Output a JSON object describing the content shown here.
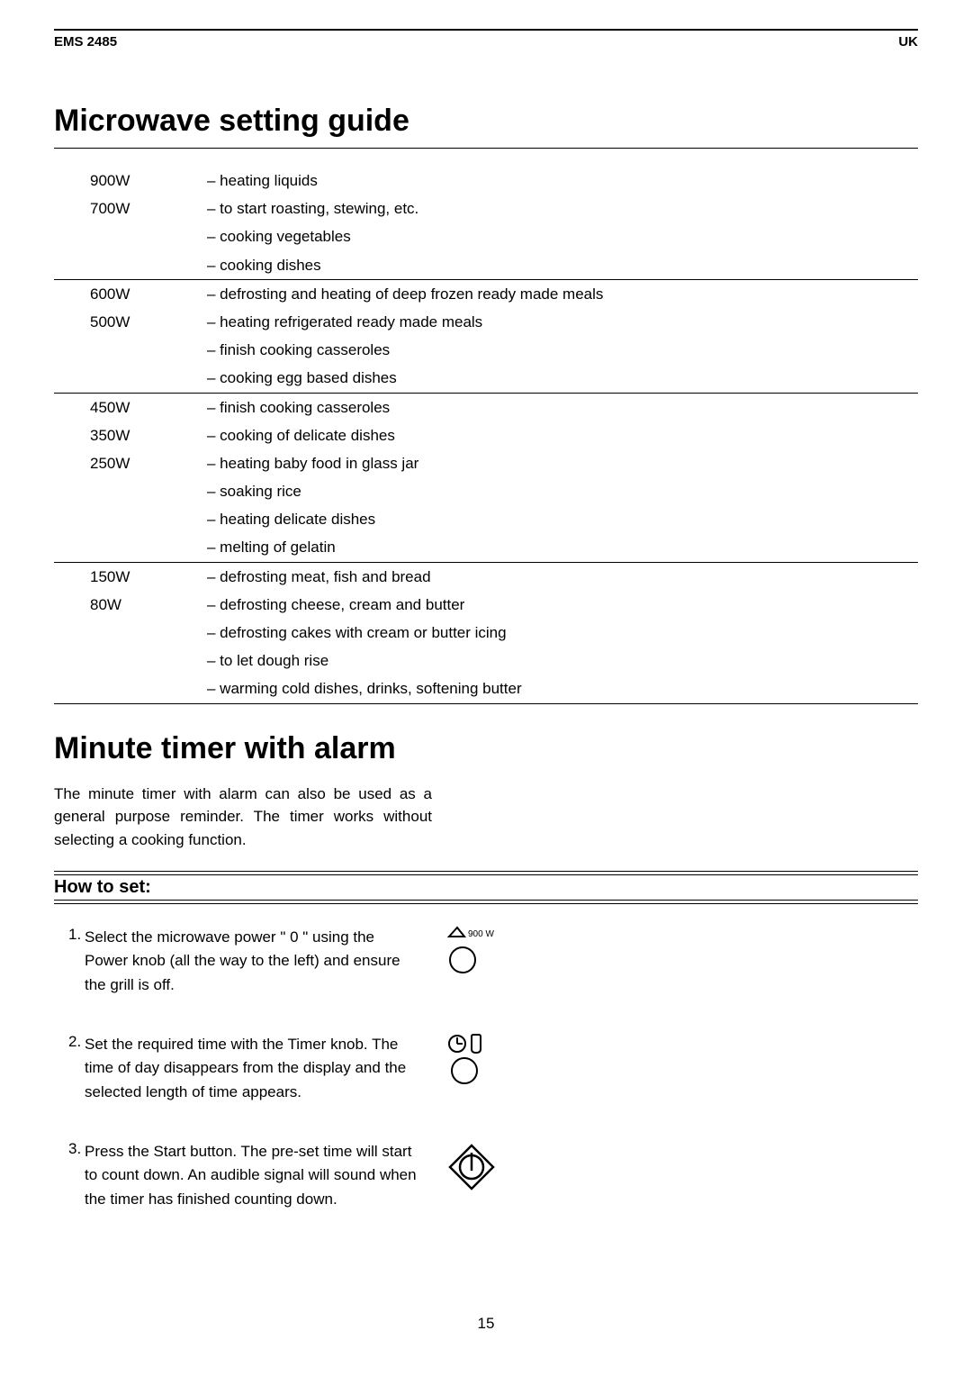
{
  "header": {
    "model": "EMS 2485",
    "region": "UK"
  },
  "section1_title": "Microwave setting guide",
  "guide_groups": [
    {
      "rows": [
        {
          "watt": "900W",
          "desc": "– heating liquids"
        },
        {
          "watt": "700W",
          "desc": "– to start roasting, stewing, etc."
        },
        {
          "watt": "",
          "desc": "– cooking vegetables"
        },
        {
          "watt": "",
          "desc": "– cooking dishes"
        }
      ]
    },
    {
      "rows": [
        {
          "watt": "600W",
          "desc": "– defrosting and heating of deep frozen ready made meals"
        },
        {
          "watt": "500W",
          "desc": "– heating refrigerated ready made meals"
        },
        {
          "watt": "",
          "desc": "– finish cooking casseroles"
        },
        {
          "watt": "",
          "desc": "– cooking egg based dishes"
        }
      ]
    },
    {
      "rows": [
        {
          "watt": "450W",
          "desc": "– finish cooking casseroles"
        },
        {
          "watt": "350W",
          "desc": "– cooking of delicate dishes"
        },
        {
          "watt": "250W",
          "desc": "– heating baby food in glass jar"
        },
        {
          "watt": "",
          "desc": "– soaking rice"
        },
        {
          "watt": "",
          "desc": "– heating delicate dishes"
        },
        {
          "watt": "",
          "desc": "– melting of gelatin"
        }
      ]
    },
    {
      "rows": [
        {
          "watt": "150W",
          "desc": "– defrosting meat, fish and bread"
        },
        {
          "watt": "80W",
          "desc": "– defrosting cheese, cream and butter"
        },
        {
          "watt": "",
          "desc": "– defrosting cakes with cream or butter icing"
        },
        {
          "watt": "",
          "desc": "– to let dough rise"
        },
        {
          "watt": "",
          "desc": "– warming cold dishes, drinks, softening butter"
        }
      ]
    }
  ],
  "section2_title": "Minute timer with alarm",
  "intro_text": "The minute timer with alarm can also be used as a general purpose reminder. The timer works without selecting a cooking function.",
  "howto_label": "How to set:",
  "steps": [
    {
      "n": "1.",
      "text": "Select the microwave power \" 0 \" using the Power knob (all the way to the left) and ensure the grill is off.",
      "icon": "power-knob",
      "icon_label": "900 W"
    },
    {
      "n": "2.",
      "text": "Set the required time with the Timer knob. The time of day disappears from the display and the selected length of time appears.",
      "icon": "timer-knob"
    },
    {
      "n": "3.",
      "text": "Press the Start button. The pre-set time will start to count down. An audible signal will sound when the timer has finished counting down.",
      "icon": "start-diamond"
    }
  ],
  "page_number": "15",
  "colors": {
    "text": "#000000",
    "bg": "#ffffff",
    "rule": "#000000"
  }
}
